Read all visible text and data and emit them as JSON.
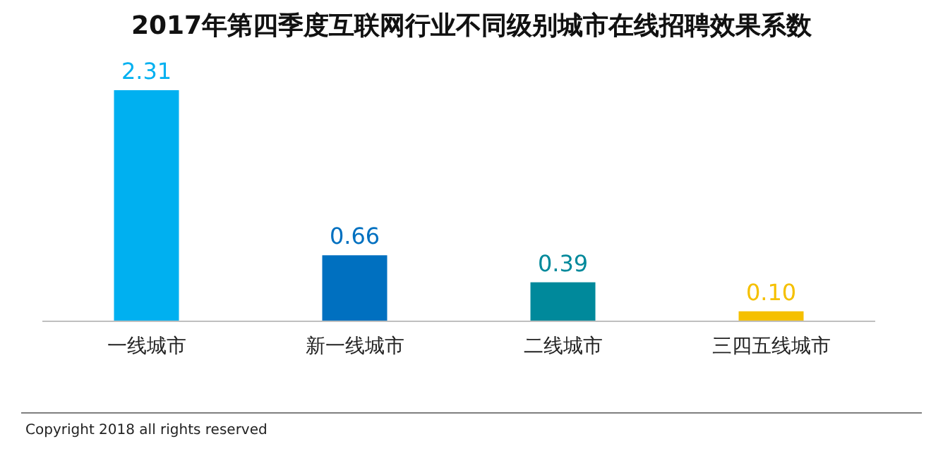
{
  "chart_data": {
    "type": "bar",
    "title": "2017年第四季度互联网行业不同级别城市在线招聘效果系数",
    "categories": [
      "一线城市",
      "新一线城市",
      "二线城市",
      "三四五线城市"
    ],
    "values": [
      2.31,
      0.66,
      0.39,
      0.1
    ],
    "colors": [
      "#00b0f0",
      "#0070c0",
      "#00899b",
      "#f5c000"
    ],
    "value_labels": [
      "2.31",
      "0.66",
      "0.39",
      "0.10"
    ],
    "annotations": [
      "Copyright 2018 all rights reserved"
    ]
  }
}
